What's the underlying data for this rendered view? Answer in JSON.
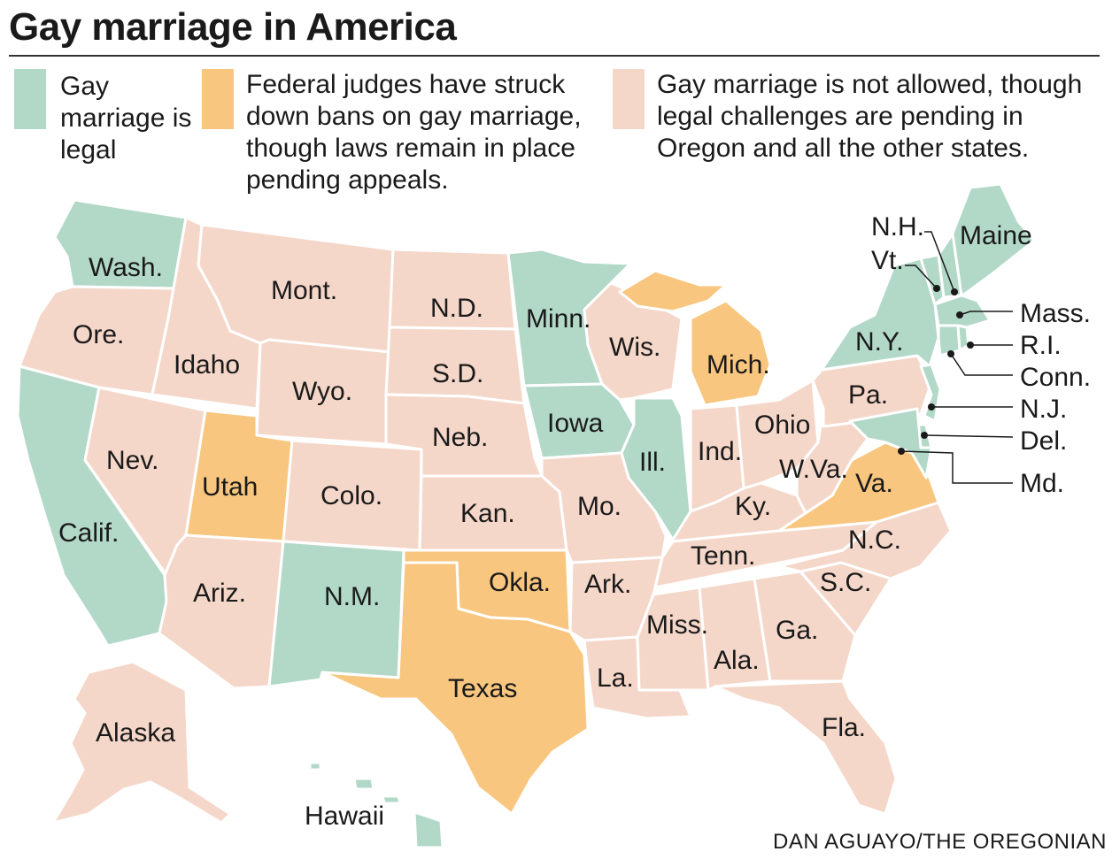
{
  "title": "Gay marriage in America",
  "colors": {
    "legal": "#b2d8c8",
    "struck_down": "#f8c67e",
    "not_allowed": "#f5d7c9",
    "border": "#ffffff"
  },
  "legend": [
    {
      "key": "legal",
      "text": "Gay marriage is legal"
    },
    {
      "key": "struck_down",
      "text": "Federal judges have struck down bans on gay marriage, though laws remain in place pending appeals."
    },
    {
      "key": "not_allowed",
      "text": "Gay marriage is not allowed, though legal challenges are pending in Oregon and all the other states."
    }
  ],
  "states": [
    {
      "id": "wa",
      "name": "Wash.",
      "status": "legal"
    },
    {
      "id": "or",
      "name": "Ore.",
      "status": "not_allowed"
    },
    {
      "id": "ca",
      "name": "Calif.",
      "status": "legal"
    },
    {
      "id": "id",
      "name": "Idaho",
      "status": "not_allowed"
    },
    {
      "id": "nv",
      "name": "Nev.",
      "status": "not_allowed"
    },
    {
      "id": "mt",
      "name": "Mont.",
      "status": "not_allowed"
    },
    {
      "id": "wy",
      "name": "Wyo.",
      "status": "not_allowed"
    },
    {
      "id": "ut",
      "name": "Utah",
      "status": "struck_down"
    },
    {
      "id": "az",
      "name": "Ariz.",
      "status": "not_allowed"
    },
    {
      "id": "co",
      "name": "Colo.",
      "status": "not_allowed"
    },
    {
      "id": "nm",
      "name": "N.M.",
      "status": "legal"
    },
    {
      "id": "nd",
      "name": "N.D.",
      "status": "not_allowed"
    },
    {
      "id": "sd",
      "name": "S.D.",
      "status": "not_allowed"
    },
    {
      "id": "ne",
      "name": "Neb.",
      "status": "not_allowed"
    },
    {
      "id": "ks",
      "name": "Kan.",
      "status": "not_allowed"
    },
    {
      "id": "ok",
      "name": "Okla.",
      "status": "struck_down"
    },
    {
      "id": "tx",
      "name": "Texas",
      "status": "struck_down"
    },
    {
      "id": "mn",
      "name": "Minn.",
      "status": "legal"
    },
    {
      "id": "ia",
      "name": "Iowa",
      "status": "legal"
    },
    {
      "id": "mo",
      "name": "Mo.",
      "status": "not_allowed"
    },
    {
      "id": "ar",
      "name": "Ark.",
      "status": "not_allowed"
    },
    {
      "id": "la",
      "name": "La.",
      "status": "not_allowed"
    },
    {
      "id": "wi",
      "name": "Wis.",
      "status": "not_allowed"
    },
    {
      "id": "il",
      "name": "Ill.",
      "status": "legal"
    },
    {
      "id": "mi",
      "name": "Mich.",
      "status": "struck_down"
    },
    {
      "id": "in",
      "name": "Ind.",
      "status": "not_allowed"
    },
    {
      "id": "oh",
      "name": "Ohio",
      "status": "not_allowed"
    },
    {
      "id": "ky",
      "name": "Ky.",
      "status": "not_allowed"
    },
    {
      "id": "tn",
      "name": "Tenn.",
      "status": "not_allowed"
    },
    {
      "id": "ms",
      "name": "Miss.",
      "status": "not_allowed"
    },
    {
      "id": "al",
      "name": "Ala.",
      "status": "not_allowed"
    },
    {
      "id": "ga",
      "name": "Ga.",
      "status": "not_allowed"
    },
    {
      "id": "fl",
      "name": "Fla.",
      "status": "not_allowed"
    },
    {
      "id": "sc",
      "name": "S.C.",
      "status": "not_allowed"
    },
    {
      "id": "nc",
      "name": "N.C.",
      "status": "not_allowed"
    },
    {
      "id": "va",
      "name": "Va.",
      "status": "struck_down"
    },
    {
      "id": "wv",
      "name": "W.Va.",
      "status": "not_allowed"
    },
    {
      "id": "pa",
      "name": "Pa.",
      "status": "not_allowed"
    },
    {
      "id": "ny",
      "name": "N.Y.",
      "status": "legal"
    },
    {
      "id": "vt",
      "name": "Vt.",
      "status": "legal"
    },
    {
      "id": "nh",
      "name": "N.H.",
      "status": "legal"
    },
    {
      "id": "me",
      "name": "Maine",
      "status": "legal"
    },
    {
      "id": "ma",
      "name": "Mass.",
      "status": "legal"
    },
    {
      "id": "ri",
      "name": "R.I.",
      "status": "legal"
    },
    {
      "id": "ct",
      "name": "Conn.",
      "status": "legal"
    },
    {
      "id": "nj",
      "name": "N.J.",
      "status": "legal"
    },
    {
      "id": "de",
      "name": "Del.",
      "status": "legal"
    },
    {
      "id": "md",
      "name": "Md.",
      "status": "legal"
    },
    {
      "id": "ak",
      "name": "Alaska",
      "status": "not_allowed"
    },
    {
      "id": "hi",
      "name": "Hawaii",
      "status": "legal"
    }
  ],
  "credit": "DAN AGUAYO/THE OREGONIAN"
}
